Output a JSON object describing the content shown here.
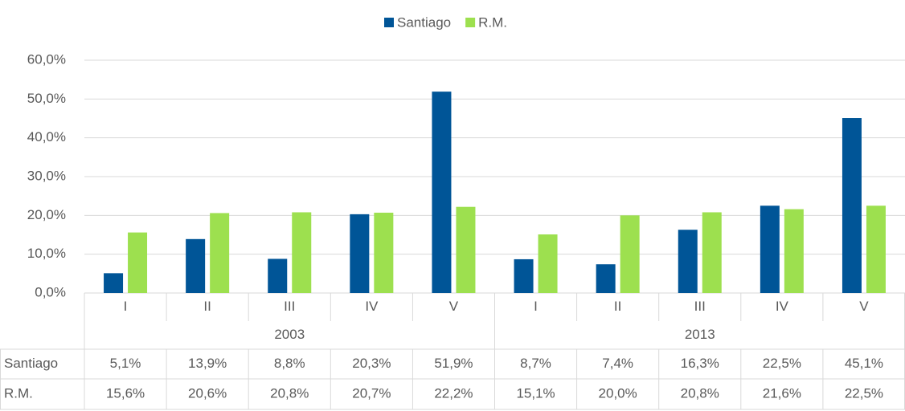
{
  "chart_data": {
    "type": "bar",
    "groups": [
      {
        "name": "2003",
        "categories": [
          "I",
          "II",
          "III",
          "IV",
          "V"
        ]
      },
      {
        "name": "2013",
        "categories": [
          "I",
          "II",
          "III",
          "IV",
          "V"
        ]
      }
    ],
    "series": [
      {
        "name": "Santiago",
        "color": "#005597",
        "values": [
          5.1,
          13.9,
          8.8,
          20.3,
          51.9,
          8.7,
          7.4,
          16.3,
          22.5,
          45.1
        ],
        "value_labels": [
          "5,1%",
          "13,9%",
          "8,8%",
          "20,3%",
          "51,9%",
          "8,7%",
          "7,4%",
          "16,3%",
          "22,5%",
          "45,1%"
        ]
      },
      {
        "name": "R.M.",
        "color": "#9de04f",
        "values": [
          15.6,
          20.6,
          20.8,
          20.7,
          22.2,
          15.1,
          20.0,
          20.8,
          21.6,
          22.5
        ],
        "value_labels": [
          "15,6%",
          "20,6%",
          "20,8%",
          "20,7%",
          "22,2%",
          "15,1%",
          "20,0%",
          "20,8%",
          "21,6%",
          "22,5%"
        ]
      }
    ],
    "ylim": [
      0,
      60
    ],
    "yticks": [
      {
        "value": 0,
        "label": "0,0%"
      },
      {
        "value": 10,
        "label": "10,0%"
      },
      {
        "value": 20,
        "label": "20,0%"
      },
      {
        "value": 30,
        "label": "30,0%"
      },
      {
        "value": 40,
        "label": "40,0%"
      },
      {
        "value": 50,
        "label": "50,0%"
      },
      {
        "value": 60,
        "label": "60,0%"
      }
    ],
    "grid": true,
    "legend": "top"
  }
}
